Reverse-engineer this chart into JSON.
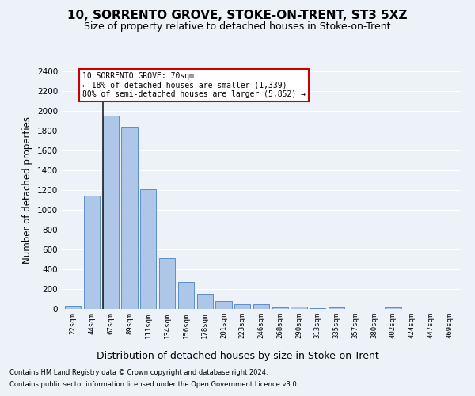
{
  "title": "10, SORRENTO GROVE, STOKE-ON-TRENT, ST3 5XZ",
  "subtitle": "Size of property relative to detached houses in Stoke-on-Trent",
  "xlabel": "Distribution of detached houses by size in Stoke-on-Trent",
  "ylabel": "Number of detached properties",
  "categories": [
    "22sqm",
    "44sqm",
    "67sqm",
    "89sqm",
    "111sqm",
    "134sqm",
    "156sqm",
    "178sqm",
    "201sqm",
    "223sqm",
    "246sqm",
    "268sqm",
    "290sqm",
    "313sqm",
    "335sqm",
    "357sqm",
    "380sqm",
    "402sqm",
    "424sqm",
    "447sqm",
    "469sqm"
  ],
  "values": [
    30,
    1145,
    1950,
    1840,
    1210,
    510,
    270,
    155,
    80,
    50,
    45,
    20,
    22,
    10,
    18,
    0,
    0,
    20,
    0,
    0,
    0
  ],
  "bar_color": "#aec6e8",
  "bar_edge_color": "#5b8fc7",
  "vline_color": "#222222",
  "annotation_text": "10 SORRENTO GROVE: 70sqm\n← 18% of detached houses are smaller (1,339)\n80% of semi-detached houses are larger (5,852) →",
  "annotation_box_color": "#ffffff",
  "annotation_box_edge": "#cc0000",
  "ylim": [
    0,
    2400
  ],
  "yticks": [
    0,
    200,
    400,
    600,
    800,
    1000,
    1200,
    1400,
    1600,
    1800,
    2000,
    2200,
    2400
  ],
  "footnote1": "Contains HM Land Registry data © Crown copyright and database right 2024.",
  "footnote2": "Contains public sector information licensed under the Open Government Licence v3.0.",
  "bg_color": "#edf2f9",
  "plot_bg_color": "#edf2f9",
  "title_fontsize": 11,
  "subtitle_fontsize": 9,
  "xlabel_fontsize": 9,
  "ylabel_fontsize": 8.5
}
